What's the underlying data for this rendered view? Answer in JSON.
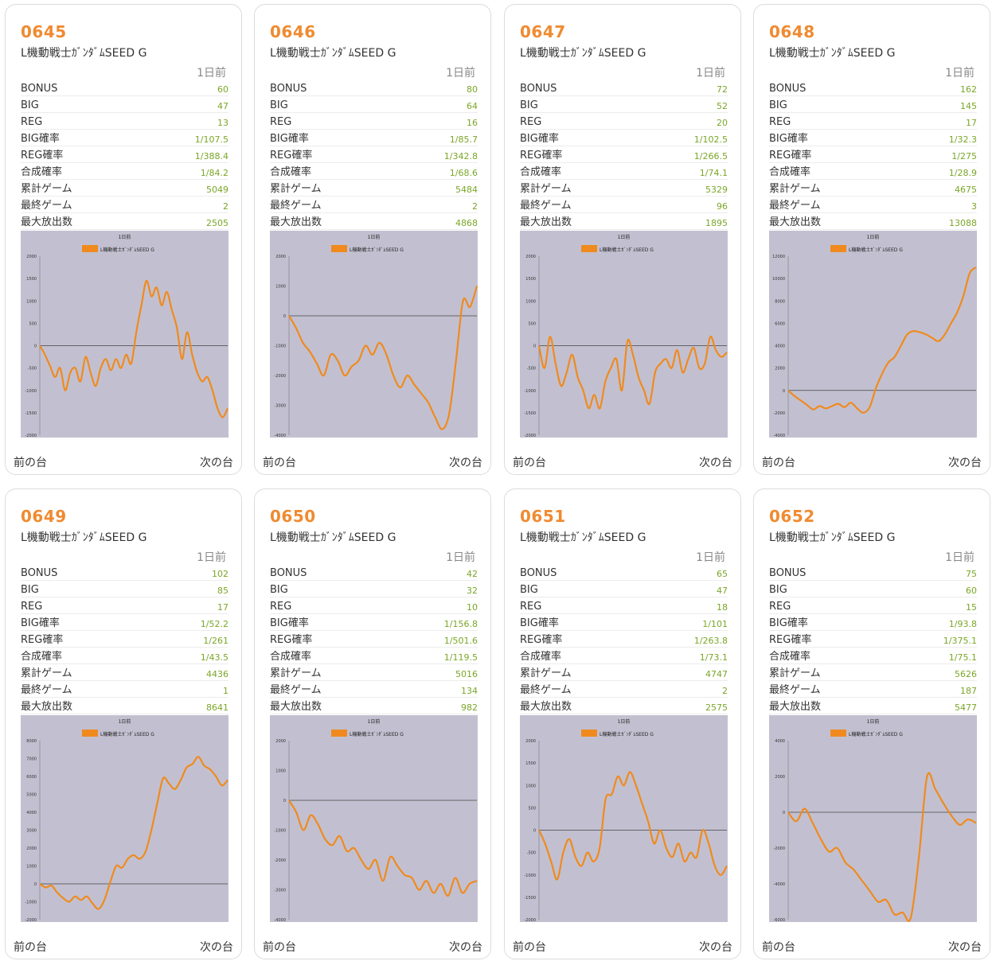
{
  "nav": {
    "prev_label": "前の台",
    "next_label": "次の台"
  },
  "labels": {
    "period": "1日前",
    "rows": [
      "BONUS",
      "BIG",
      "REG",
      "BIG確率",
      "REG確率",
      "合成確率",
      "累計ゲーム",
      "最終ゲーム",
      "最大放出数"
    ]
  },
  "colors": {
    "accent": "#f08a30",
    "value": "#7aa627",
    "plot_bg": "#c2c0d0",
    "line": "#f08a1e"
  },
  "machines": [
    {
      "number": "0645",
      "name": "L機動戦士ｶﾞﾝﾀﾞﾑSEED G",
      "values": [
        "60",
        "47",
        "13",
        "1/107.5",
        "1/388.4",
        "1/84.2",
        "5049",
        "2",
        "2505"
      ]
    },
    {
      "number": "0646",
      "name": "L機動戦士ｶﾞﾝﾀﾞﾑSEED G",
      "values": [
        "80",
        "64",
        "16",
        "1/85.7",
        "1/342.8",
        "1/68.6",
        "5484",
        "2",
        "4868"
      ]
    },
    {
      "number": "0647",
      "name": "L機動戦士ｶﾞﾝﾀﾞﾑSEED G",
      "values": [
        "72",
        "52",
        "20",
        "1/102.5",
        "1/266.5",
        "1/74.1",
        "5329",
        "96",
        "1895"
      ]
    },
    {
      "number": "0648",
      "name": "L機動戦士ｶﾞﾝﾀﾞﾑSEED G",
      "values": [
        "162",
        "145",
        "17",
        "1/32.3",
        "1/275",
        "1/28.9",
        "4675",
        "3",
        "13088"
      ]
    },
    {
      "number": "0649",
      "name": "L機動戦士ｶﾞﾝﾀﾞﾑSEED G",
      "values": [
        "102",
        "85",
        "17",
        "1/52.2",
        "1/261",
        "1/43.5",
        "4436",
        "1",
        "8641"
      ]
    },
    {
      "number": "0650",
      "name": "L機動戦士ｶﾞﾝﾀﾞﾑSEED G",
      "values": [
        "42",
        "32",
        "10",
        "1/156.8",
        "1/501.6",
        "1/119.5",
        "5016",
        "134",
        "982"
      ]
    },
    {
      "number": "0651",
      "name": "L機動戦士ｶﾞﾝﾀﾞﾑSEED G",
      "values": [
        "65",
        "47",
        "18",
        "1/101",
        "1/263.8",
        "1/73.1",
        "4747",
        "2",
        "2575"
      ]
    },
    {
      "number": "0652",
      "name": "L機動戦士ｶﾞﾝﾀﾞﾑSEED G",
      "values": [
        "75",
        "60",
        "15",
        "1/93.8",
        "1/375.1",
        "1/75.1",
        "5626",
        "187",
        "5477"
      ]
    }
  ],
  "chart_data": [
    {
      "type": "line",
      "title": "1日前",
      "series": [
        {
          "name": "L機動戦士ｶﾞﾝﾀﾞﾑSEED G"
        }
      ],
      "ylim": [
        -2000,
        2000
      ],
      "yticks": [
        2000,
        1500,
        1000,
        500,
        0,
        -500,
        -1000,
        -1500,
        -2000
      ],
      "values": [
        0,
        -200,
        -450,
        -700,
        -500,
        -1000,
        -600,
        -500,
        -800,
        -250,
        -600,
        -900,
        -500,
        -300,
        -550,
        -300,
        -500,
        -200,
        -400,
        300,
        900,
        1450,
        1100,
        1300,
        900,
        1200,
        800,
        400,
        -300,
        300,
        -200,
        -600,
        -800,
        -700,
        -1000,
        -1400,
        -1600,
        -1400
      ]
    },
    {
      "type": "line",
      "title": "1日前",
      "series": [
        {
          "name": "L機動戦士ｶﾞﾝﾀﾞﾑSEED G"
        }
      ],
      "ylim": [
        -4000,
        2000
      ],
      "yticks": [
        2000,
        1000,
        0,
        -1000,
        -2000,
        -3000,
        -4000
      ],
      "values": [
        0,
        -400,
        -900,
        -1200,
        -1600,
        -2000,
        -1300,
        -1500,
        -2000,
        -1700,
        -1500,
        -1000,
        -1300,
        -900,
        -1300,
        -2000,
        -2400,
        -2000,
        -2300,
        -2600,
        -2900,
        -3400,
        -3800,
        -3300,
        -1500,
        500,
        300,
        1000
      ]
    },
    {
      "type": "line",
      "title": "1日前",
      "series": [
        {
          "name": "L機動戦士ｶﾞﾝﾀﾞﾑSEED G"
        }
      ],
      "ylim": [
        -2000,
        2000
      ],
      "yticks": [
        2000,
        1500,
        1000,
        500,
        0,
        -500,
        -1000,
        -1500,
        -2000
      ],
      "values": [
        0,
        -500,
        200,
        -400,
        -900,
        -600,
        -200,
        -700,
        -1000,
        -1400,
        -1100,
        -1400,
        -800,
        -500,
        -300,
        -1000,
        100,
        -200,
        -700,
        -1000,
        -1300,
        -600,
        -400,
        -300,
        -500,
        -100,
        -600,
        -300,
        -50,
        -500,
        -400,
        200,
        -100,
        -250,
        -150
      ]
    },
    {
      "type": "line",
      "title": "1日前",
      "series": [
        {
          "name": "L機動戦士ｶﾞﾝﾀﾞﾑSEED G"
        }
      ],
      "ylim": [
        -4000,
        12000
      ],
      "yticks": [
        12000,
        10000,
        8000,
        6000,
        4000,
        2000,
        0,
        -2000,
        -4000
      ],
      "values": [
        0,
        -500,
        -900,
        -1300,
        -1700,
        -1400,
        -1600,
        -1400,
        -1200,
        -1500,
        -1100,
        -1600,
        -2000,
        -1500,
        200,
        1500,
        2500,
        3000,
        4000,
        5000,
        5300,
        5200,
        5000,
        4700,
        4400,
        5000,
        6000,
        7000,
        8500,
        10500,
        11000
      ]
    },
    {
      "type": "line",
      "title": "1日前",
      "series": [
        {
          "name": "L機動戦士ｶﾞﾝﾀﾞﾑSEED G"
        }
      ],
      "ylim": [
        -2000,
        8000
      ],
      "yticks": [
        8000,
        7000,
        6000,
        5000,
        4000,
        3000,
        2000,
        1000,
        0,
        -1000,
        -2000
      ],
      "values": [
        0,
        -200,
        -100,
        -500,
        -800,
        -1000,
        -700,
        -900,
        -700,
        -1100,
        -1400,
        -900,
        100,
        1000,
        900,
        1400,
        1600,
        1400,
        1800,
        3000,
        4500,
        5900,
        5600,
        5300,
        5800,
        6500,
        6700,
        7100,
        6600,
        6400,
        6000,
        5500,
        5800
      ]
    },
    {
      "type": "line",
      "title": "1日前",
      "series": [
        {
          "name": "L機動戦士ｶﾞﾝﾀﾞﾑSEED G"
        }
      ],
      "ylim": [
        -4000,
        2000
      ],
      "yticks": [
        2000,
        1000,
        0,
        -1000,
        -2000,
        -3000,
        -4000
      ],
      "values": [
        0,
        -400,
        -1000,
        -500,
        -800,
        -1300,
        -1500,
        -1200,
        -1700,
        -1600,
        -2000,
        -2300,
        -2000,
        -2700,
        -1900,
        -2200,
        -2500,
        -2600,
        -3000,
        -2700,
        -3100,
        -2800,
        -3200,
        -2600,
        -3100,
        -2800,
        -2700
      ]
    },
    {
      "type": "line",
      "title": "1日前",
      "series": [
        {
          "name": "L機動戦士ｶﾞﾝﾀﾞﾑSEED G"
        }
      ],
      "ylim": [
        -2000,
        2000
      ],
      "yticks": [
        2000,
        1500,
        1000,
        500,
        0,
        -500,
        -1000,
        -1500,
        -2000
      ],
      "values": [
        0,
        -300,
        -700,
        -1100,
        -500,
        -200,
        -600,
        -800,
        -500,
        -700,
        -400,
        700,
        800,
        1200,
        1000,
        1300,
        1000,
        600,
        200,
        -300,
        0,
        -400,
        -600,
        -300,
        -700,
        -500,
        -600,
        0,
        -300,
        -800,
        -1000,
        -800
      ]
    },
    {
      "type": "line",
      "title": "1日前",
      "series": [
        {
          "name": "L機動戦士ｶﾞﾝﾀﾞﾑSEED G"
        }
      ],
      "ylim": [
        -6000,
        4000
      ],
      "yticks": [
        4000,
        2000,
        0,
        -2000,
        -4000,
        -6000
      ],
      "values": [
        0,
        -500,
        200,
        -600,
        -1500,
        -2200,
        -2000,
        -2800,
        -3200,
        -3800,
        -4400,
        -5000,
        -4900,
        -5700,
        -5600,
        -5900,
        -2500,
        2000,
        1300,
        500,
        -200,
        -700,
        -400,
        -600
      ]
    }
  ]
}
